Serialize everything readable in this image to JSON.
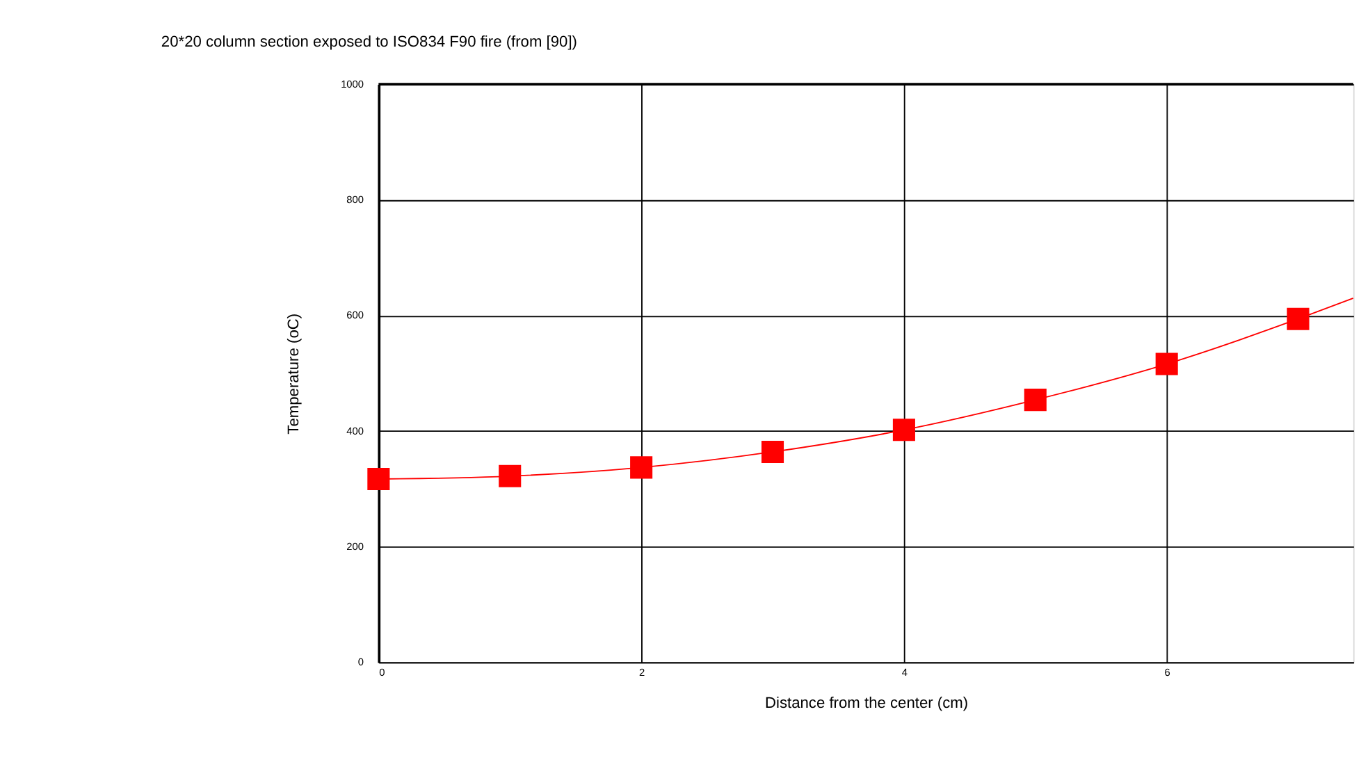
{
  "chart_data": {
    "type": "line",
    "title": "20*20 column section exposed to ISO834 F90 fire (from [90])",
    "xlabel": "Distance from the center (cm)",
    "ylabel": "Temperature (oC)",
    "series": [
      {
        "color": "#ff0000",
        "marker": "none",
        "x": [
          0,
          1,
          2,
          3,
          4,
          5,
          6,
          7,
          7.42
        ],
        "values": [
          317,
          322,
          337,
          364,
          402,
          454,
          516,
          594,
          630
        ]
      },
      {
        "type": "scatter",
        "color": "#ff0000",
        "marker": "square",
        "x": [
          0,
          1,
          2,
          3,
          4,
          5,
          6,
          7
        ],
        "values": [
          317,
          322,
          337,
          364,
          402,
          454,
          516,
          594
        ]
      }
    ],
    "xlim": [
      0,
      7.42
    ],
    "xticks": [
      0,
      2,
      4,
      6
    ],
    "ylim": [
      0,
      1000
    ],
    "yticks": [
      0,
      200,
      400,
      600,
      800,
      1000
    ],
    "grid": true
  }
}
